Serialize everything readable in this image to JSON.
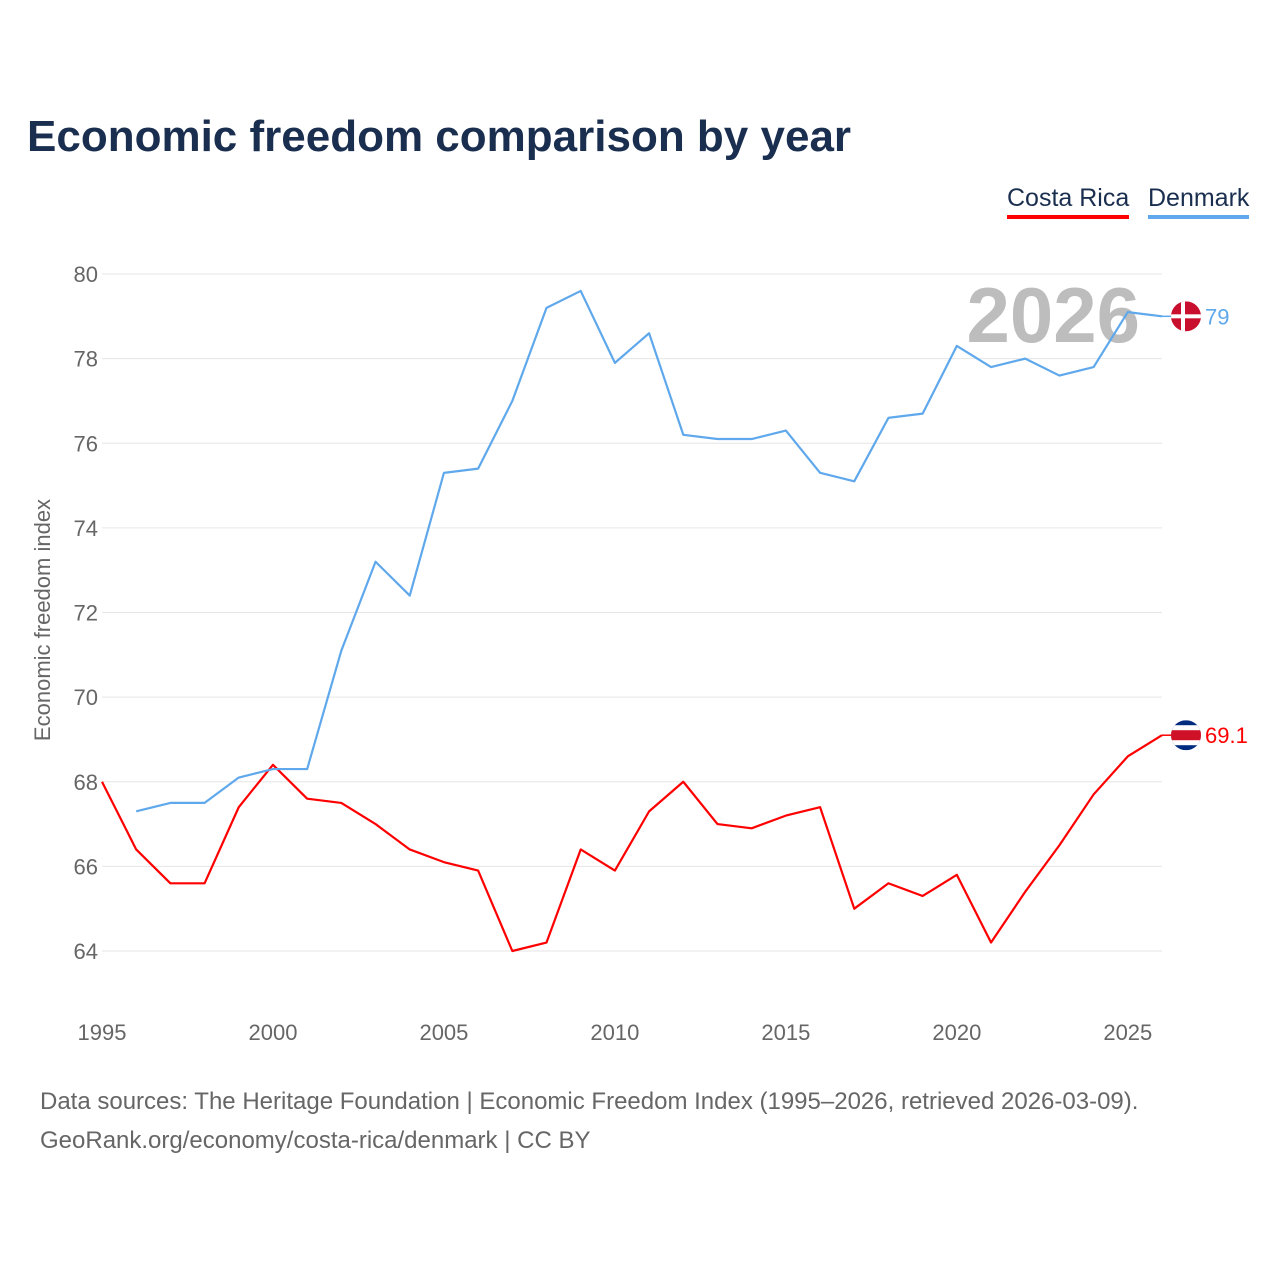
{
  "title": "Economic freedom comparison by year",
  "legend": [
    {
      "name": "Costa Rica",
      "color": "#ff0000"
    },
    {
      "name": "Denmark",
      "color": "#5fa8ec"
    }
  ],
  "footer": {
    "source": "Data sources: The Heritage Foundation | Economic Freedom Index (1995–2026, retrieved 2026-03-09).",
    "url": "GeoRank.org/economy/costa-rica/denmark | CC BY"
  },
  "chart_data": {
    "type": "line",
    "title": "Economic freedom comparison by year",
    "xlabel": "",
    "ylabel": "Economic freedom index",
    "watermark_year": "2026",
    "xlim": [
      1995,
      2026
    ],
    "ylim": [
      63,
      80
    ],
    "xticks": [
      "1995",
      "2000",
      "2005",
      "2010",
      "2015",
      "2020",
      "2025"
    ],
    "yticks": [
      "64",
      "66",
      "68",
      "70",
      "72",
      "74",
      "76",
      "78",
      "80"
    ],
    "grid": true,
    "legend_position": "top-right",
    "series": [
      {
        "name": "Costa Rica",
        "color": "#ff0000",
        "end_label": "69.1",
        "x": [
          1995,
          1996,
          1997,
          1998,
          1999,
          2000,
          2001,
          2002,
          2003,
          2004,
          2005,
          2006,
          2007,
          2008,
          2009,
          2010,
          2011,
          2012,
          2013,
          2014,
          2015,
          2016,
          2017,
          2018,
          2019,
          2020,
          2021,
          2022,
          2023,
          2024,
          2025,
          2026
        ],
        "values": [
          68.0,
          66.4,
          65.6,
          65.6,
          67.4,
          68.4,
          67.6,
          67.5,
          67.0,
          66.4,
          66.1,
          65.9,
          64.0,
          64.2,
          66.4,
          65.9,
          67.3,
          68.0,
          67.0,
          66.9,
          67.2,
          67.4,
          65.0,
          65.6,
          65.3,
          65.8,
          64.2,
          65.4,
          66.5,
          67.7,
          68.6,
          69.1
        ]
      },
      {
        "name": "Denmark",
        "color": "#5fa8ec",
        "end_label": "79",
        "x": [
          1996,
          1997,
          1998,
          1999,
          2000,
          2001,
          2002,
          2003,
          2004,
          2005,
          2006,
          2007,
          2008,
          2009,
          2010,
          2011,
          2012,
          2013,
          2014,
          2015,
          2016,
          2017,
          2018,
          2019,
          2020,
          2021,
          2022,
          2023,
          2024,
          2025,
          2026
        ],
        "values": [
          67.3,
          67.5,
          67.5,
          68.1,
          68.3,
          68.3,
          71.1,
          73.2,
          72.4,
          75.3,
          75.4,
          77.0,
          79.2,
          79.6,
          77.9,
          78.6,
          76.2,
          76.1,
          76.1,
          76.3,
          75.3,
          75.1,
          76.6,
          76.7,
          78.3,
          77.8,
          78.0,
          77.6,
          77.8,
          79.1,
          79.0
        ]
      }
    ]
  }
}
